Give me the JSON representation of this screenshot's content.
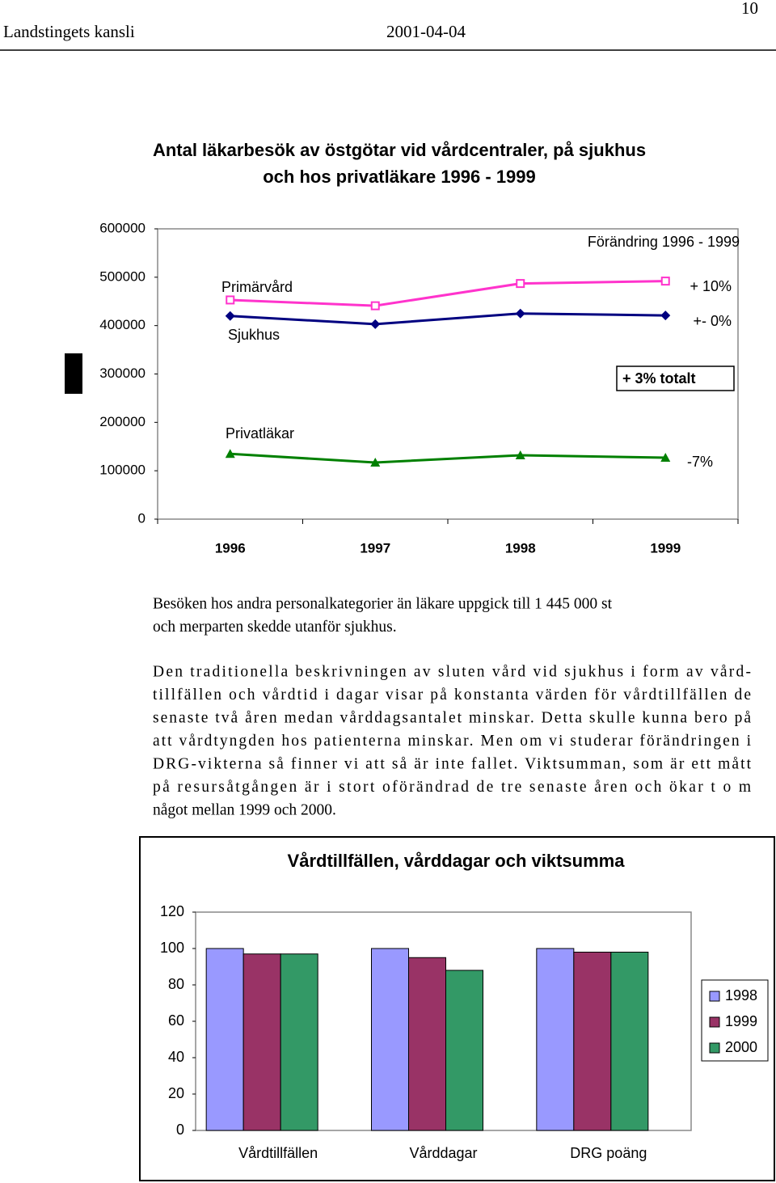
{
  "header": {
    "org": "Landstingets kansli",
    "date": "2001-04-04",
    "page": "10"
  },
  "paragraphs": [
    [
      "Besöken hos andra personalkategorier än läkare uppgick till 1 445 000 st",
      "och merparten skedde utanför sjukhus."
    ],
    [
      "Den traditionella beskrivningen av sluten vård vid sjukhus i form av vård-",
      "tillfällen och vårdtid i dagar visar på konstanta värden för vårdtillfällen de",
      "senaste två åren medan vårddagsantalet minskar. Detta skulle kunna bero på",
      "att vårdtyngden hos patienterna minskar. Men om vi studerar förändringen i",
      "DRG-vikterna så finner vi att så är inte fallet. Viktsumman, som är ett mått",
      "på resursåtgången är i stort oförändrad de tre senaste åren och ökar t o m",
      "något mellan 1999 och 2000."
    ]
  ],
  "chart_data": [
    {
      "type": "line",
      "title": "Antal läkarbesök av östgötar vid vårdcentraler, på sjukhus och hos privatläkare 1996 - 1999",
      "categories": [
        "1996",
        "1997",
        "1998",
        "1999"
      ],
      "series": [
        {
          "name": "Primärvård",
          "color": "#ff33cc",
          "marker": "square",
          "values": [
            453000,
            441000,
            487000,
            492000
          ]
        },
        {
          "name": "Sjukhus",
          "color": "#000080",
          "marker": "diamond",
          "values": [
            420000,
            403000,
            425000,
            421000
          ]
        },
        {
          "name": "Privatläkar",
          "color": "#008000",
          "marker": "triangle",
          "values": [
            135000,
            117000,
            132000,
            127000
          ]
        }
      ],
      "annotations": [
        "Förändring 1996 - 1999",
        "+ 10%",
        "+- 0%",
        "+ 3% totalt",
        "-7%"
      ],
      "ylim": [
        0,
        600000
      ],
      "yticks": [
        0,
        100000,
        200000,
        300000,
        400000,
        500000,
        600000
      ],
      "grid": false
    },
    {
      "type": "bar",
      "title": "Vårdtillfällen, vårddagar och viktsumma",
      "categories": [
        "Vårdtillfällen",
        "Vårddagar",
        "DRG poäng"
      ],
      "series": [
        {
          "name": "1998",
          "color": "#9999ff",
          "values": [
            100,
            100,
            100
          ]
        },
        {
          "name": "1999",
          "color": "#993366",
          "values": [
            97,
            95,
            98
          ]
        },
        {
          "name": "2000",
          "color": "#339966",
          "values": [
            97,
            88,
            98
          ]
        }
      ],
      "ylim": [
        0,
        120
      ],
      "yticks": [
        0,
        20,
        40,
        60,
        80,
        100,
        120
      ],
      "grid": false,
      "legend": "right"
    }
  ]
}
